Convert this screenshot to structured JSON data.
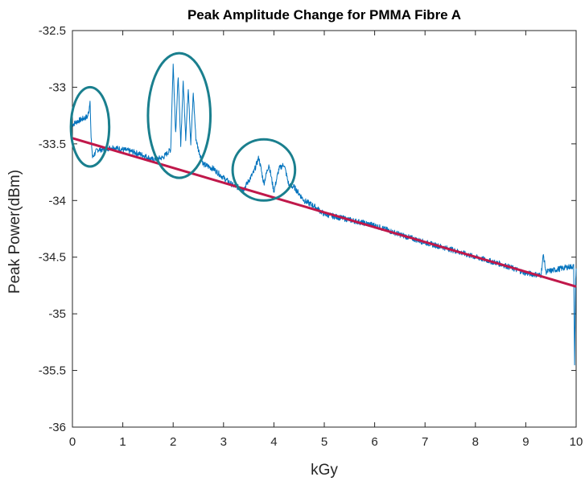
{
  "chart_data": {
    "type": "line",
    "title": "Peak Amplitude Change for PMMA Fibre A",
    "xlabel": "kGy",
    "ylabel": "Peak Power(dBm)",
    "xlim": [
      0,
      10
    ],
    "ylim": [
      -36,
      -32.5
    ],
    "x_ticks": [
      "0",
      "1",
      "2",
      "3",
      "4",
      "5",
      "6",
      "7",
      "8",
      "9",
      "10"
    ],
    "y_ticks": [
      "-32.5",
      "-33",
      "-33.5",
      "-34",
      "-34.5",
      "-35",
      "-35.5",
      "-36"
    ],
    "grid": false,
    "legend": "none",
    "series": [
      {
        "kind": "measured",
        "color": "#0072BD",
        "x": [
          0.0,
          0.1,
          0.2,
          0.3,
          0.33,
          0.35,
          0.37,
          0.4,
          0.45,
          0.5,
          0.6,
          0.8,
          1.0,
          1.2,
          1.4,
          1.6,
          1.8,
          1.95,
          2.0,
          2.05,
          2.1,
          2.15,
          2.2,
          2.25,
          2.3,
          2.35,
          2.4,
          2.45,
          2.5,
          2.6,
          2.8,
          3.0,
          3.2,
          3.4,
          3.6,
          3.7,
          3.8,
          3.9,
          4.0,
          4.1,
          4.2,
          4.3,
          4.4,
          4.6,
          4.8,
          5.0,
          5.5,
          6.0,
          6.5,
          7.0,
          7.5,
          8.0,
          8.5,
          9.0,
          9.3,
          9.35,
          9.4,
          9.6,
          9.8,
          9.95,
          9.97,
          9.99,
          10.0
        ],
        "y": [
          -33.33,
          -33.3,
          -33.28,
          -33.26,
          -33.2,
          -33.1,
          -33.45,
          -33.62,
          -33.58,
          -33.55,
          -33.55,
          -33.53,
          -33.55,
          -33.57,
          -33.6,
          -33.64,
          -33.62,
          -33.55,
          -32.8,
          -33.4,
          -32.9,
          -33.5,
          -32.95,
          -33.45,
          -33.0,
          -33.5,
          -33.05,
          -33.45,
          -33.55,
          -33.68,
          -33.72,
          -33.8,
          -33.87,
          -33.9,
          -33.75,
          -33.62,
          -33.85,
          -33.68,
          -33.92,
          -33.72,
          -33.68,
          -33.87,
          -33.88,
          -34.0,
          -34.05,
          -34.12,
          -34.17,
          -34.22,
          -34.3,
          -34.37,
          -34.43,
          -34.5,
          -34.56,
          -34.64,
          -34.66,
          -34.48,
          -34.63,
          -34.61,
          -34.59,
          -34.58,
          -35.45,
          -34.7,
          -34.6
        ]
      },
      {
        "kind": "linear-fit",
        "color": "#C0184A",
        "x": [
          0,
          10
        ],
        "y": [
          -33.45,
          -34.76
        ]
      }
    ],
    "annotations": [
      {
        "shape": "ellipse",
        "color": "#1A7F8E",
        "cx": 0.35,
        "cy": -33.35,
        "rx": 0.38,
        "ry": 0.35
      },
      {
        "shape": "ellipse",
        "color": "#1A7F8E",
        "cx": 2.12,
        "cy": -33.25,
        "rx": 0.62,
        "ry": 0.55
      },
      {
        "shape": "ellipse",
        "color": "#1A7F8E",
        "cx": 3.8,
        "cy": -33.73,
        "rx": 0.62,
        "ry": 0.27
      }
    ]
  }
}
